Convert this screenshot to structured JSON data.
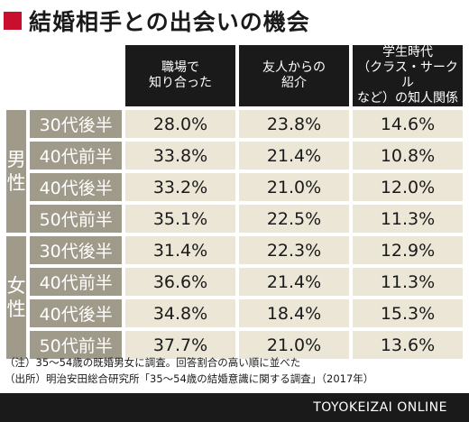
{
  "title": "結婚相手との出会いの機会",
  "chart_data": {
    "type": "table",
    "columns": [
      "職場で\n知り合った",
      "友人からの\n紹介",
      "学生時代\n（クラス・サークル\nなど）の知人関係"
    ],
    "groups": [
      {
        "label": "男性",
        "rows": [
          {
            "label": "30代後半",
            "values": [
              "28.0%",
              "23.8%",
              "14.6%"
            ]
          },
          {
            "label": "40代前半",
            "values": [
              "33.8%",
              "21.4%",
              "10.8%"
            ]
          },
          {
            "label": "40代後半",
            "values": [
              "33.2%",
              "21.0%",
              "12.0%"
            ]
          },
          {
            "label": "50代前半",
            "values": [
              "35.1%",
              "22.5%",
              "11.3%"
            ]
          }
        ]
      },
      {
        "label": "女性",
        "rows": [
          {
            "label": "30代後半",
            "values": [
              "31.4%",
              "22.3%",
              "12.9%"
            ]
          },
          {
            "label": "40代前半",
            "values": [
              "36.6%",
              "21.4%",
              "11.3%"
            ]
          },
          {
            "label": "40代後半",
            "values": [
              "34.8%",
              "18.4%",
              "15.3%"
            ]
          },
          {
            "label": "50代前半",
            "values": [
              "37.7%",
              "21.0%",
              "13.6%"
            ]
          }
        ]
      }
    ]
  },
  "notes": [
    "（注）35～54歳の既婚男女に調査。回答割合の高い順に並べた",
    "（出所）明治安田総合研究所「35～54歳の結婚意識に関する調査」（2017年）"
  ],
  "brand": "TOYOKEIZAI ONLINE",
  "colors": {
    "accent": "#c8102e",
    "header_bg": "#1a1a1a",
    "label_bg": "#a09a8a",
    "value_bg": "#ece6d6"
  }
}
